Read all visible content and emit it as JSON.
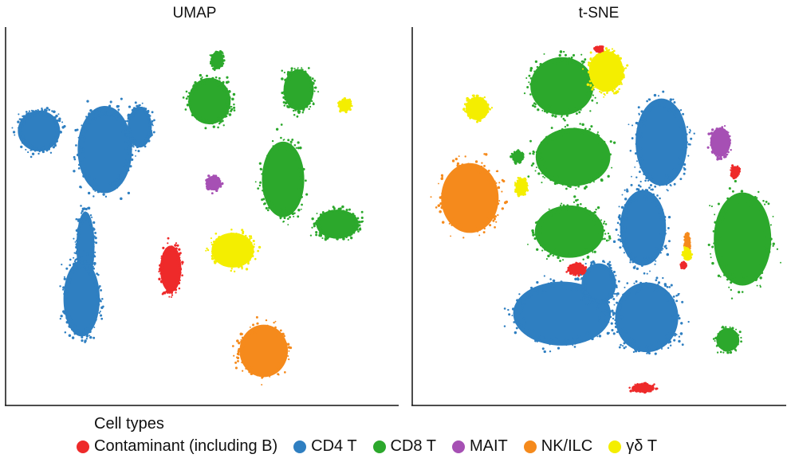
{
  "chart_data": [
    {
      "type": "scatter",
      "title": "UMAP",
      "xlabel": "",
      "ylabel": "",
      "grid": false,
      "axes": "left-bottom",
      "xlim": [
        0,
        100
      ],
      "ylim": [
        0,
        100
      ],
      "clusters": [
        {
          "series": "CD4 T",
          "x": 8,
          "y": 73,
          "rx": 7,
          "ry": 7
        },
        {
          "series": "CD4 T",
          "x": 25,
          "y": 68,
          "rx": 9,
          "ry": 15
        },
        {
          "series": "CD4 T",
          "x": 34,
          "y": 74,
          "rx": 4,
          "ry": 7
        },
        {
          "series": "CD4 T",
          "x": 20,
          "y": 42,
          "rx": 3,
          "ry": 12
        },
        {
          "series": "CD4 T",
          "x": 19,
          "y": 28,
          "rx": 6,
          "ry": 13
        },
        {
          "series": "CD8 T",
          "x": 52,
          "y": 81,
          "rx": 7,
          "ry": 8
        },
        {
          "series": "CD8 T",
          "x": 54,
          "y": 92,
          "rx": 2,
          "ry": 3
        },
        {
          "series": "CD8 T",
          "x": 75,
          "y": 84,
          "rx": 5,
          "ry": 7
        },
        {
          "series": "CD8 T",
          "x": 71,
          "y": 60,
          "rx": 7,
          "ry": 13
        },
        {
          "series": "CD8 T",
          "x": 85,
          "y": 48,
          "rx": 7,
          "ry": 5
        },
        {
          "series": "MAIT",
          "x": 53,
          "y": 59,
          "rx": 2.5,
          "ry": 2.5
        },
        {
          "series": "γδ T",
          "x": 58,
          "y": 41,
          "rx": 7,
          "ry": 6
        },
        {
          "series": "γδ T",
          "x": 87,
          "y": 80,
          "rx": 2,
          "ry": 2
        },
        {
          "series": "Contaminant (including B)",
          "x": 42,
          "y": 36,
          "rx": 3.5,
          "ry": 8
        },
        {
          "series": "NK/ILC",
          "x": 66,
          "y": 14,
          "rx": 8,
          "ry": 9
        }
      ]
    },
    {
      "type": "scatter",
      "title": "t-SNE",
      "xlabel": "",
      "ylabel": "",
      "grid": false,
      "axes": "left-bottom",
      "xlim": [
        0,
        100
      ],
      "ylim": [
        0,
        100
      ],
      "clusters": [
        {
          "series": "NK/ILC",
          "x": 15,
          "y": 55,
          "rx": 10,
          "ry": 12
        },
        {
          "series": "NK/ILC",
          "x": 74,
          "y": 43,
          "rx": 1,
          "ry": 3
        },
        {
          "series": "CD8 T",
          "x": 40,
          "y": 85,
          "rx": 11,
          "ry": 10
        },
        {
          "series": "CD8 T",
          "x": 43,
          "y": 66,
          "rx": 13,
          "ry": 10
        },
        {
          "series": "CD8 T",
          "x": 42,
          "y": 46,
          "rx": 12,
          "ry": 9
        },
        {
          "series": "CD8 T",
          "x": 89,
          "y": 44,
          "rx": 10,
          "ry": 16
        },
        {
          "series": "CD8 T",
          "x": 85,
          "y": 17,
          "rx": 4,
          "ry": 4
        },
        {
          "series": "CD8 T",
          "x": 28,
          "y": 66,
          "rx": 2,
          "ry": 2
        },
        {
          "series": "γδ T",
          "x": 52,
          "y": 89,
          "rx": 6,
          "ry": 7
        },
        {
          "series": "γδ T",
          "x": 17,
          "y": 79,
          "rx": 4,
          "ry": 4
        },
        {
          "series": "γδ T",
          "x": 74,
          "y": 40,
          "rx": 1.5,
          "ry": 2
        },
        {
          "series": "γδ T",
          "x": 29,
          "y": 58,
          "rx": 2,
          "ry": 3
        },
        {
          "series": "MAIT",
          "x": 83,
          "y": 70,
          "rx": 3.5,
          "ry": 5
        },
        {
          "series": "CD4 T",
          "x": 67,
          "y": 70,
          "rx": 9,
          "ry": 15
        },
        {
          "series": "CD4 T",
          "x": 62,
          "y": 47,
          "rx": 8,
          "ry": 13
        },
        {
          "series": "CD4 T",
          "x": 40,
          "y": 24,
          "rx": 17,
          "ry": 11
        },
        {
          "series": "CD4 T",
          "x": 63,
          "y": 23,
          "rx": 11,
          "ry": 12
        },
        {
          "series": "CD4 T",
          "x": 50,
          "y": 32,
          "rx": 6,
          "ry": 7
        },
        {
          "series": "Contaminant (including B)",
          "x": 62,
          "y": 4,
          "rx": 4,
          "ry": 1.5
        },
        {
          "series": "Contaminant (including B)",
          "x": 44,
          "y": 36,
          "rx": 3,
          "ry": 2
        },
        {
          "series": "Contaminant (including B)",
          "x": 87,
          "y": 62,
          "rx": 1.5,
          "ry": 2
        },
        {
          "series": "Contaminant (including B)",
          "x": 50,
          "y": 95,
          "rx": 1.5,
          "ry": 1
        },
        {
          "series": "Contaminant (including B)",
          "x": 73,
          "y": 37,
          "rx": 1,
          "ry": 1
        }
      ]
    }
  ],
  "legend": {
    "title": "Cell types",
    "items": [
      {
        "name": "Contaminant (including B)",
        "color": "#ee2a2a"
      },
      {
        "name": "CD4 T",
        "color": "#2f7fc1"
      },
      {
        "name": "CD8 T",
        "color": "#2ca82c"
      },
      {
        "name": "MAIT",
        "color": "#a650b4"
      },
      {
        "name": "NK/ILC",
        "color": "#f58a1c"
      },
      {
        "name": "γδ T",
        "color": "#f4ee00"
      }
    ]
  }
}
